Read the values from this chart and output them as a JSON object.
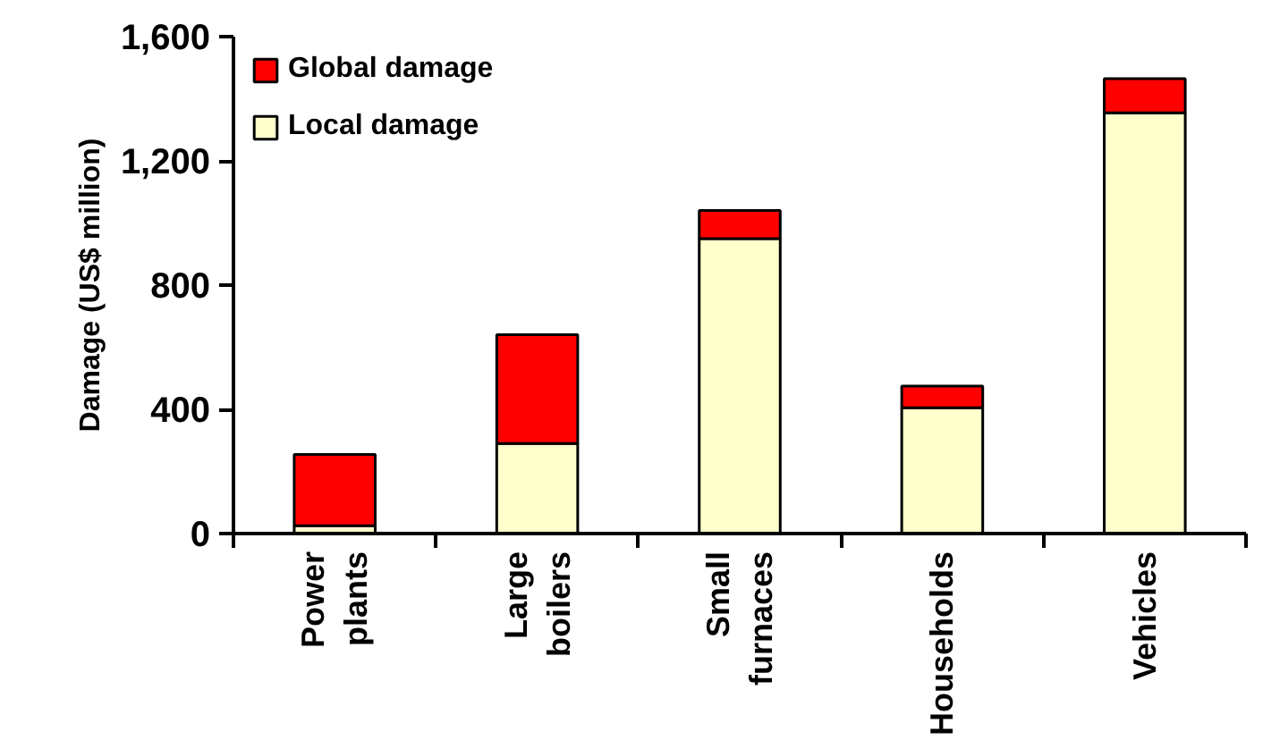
{
  "chart_data": {
    "type": "bar",
    "stacked": true,
    "ylabel": "Damage (US$ million)",
    "categories": [
      "Power plants",
      "Large boilers",
      "Small furnaces",
      "Households",
      "Vehicles"
    ],
    "series": [
      {
        "name": "Local damage",
        "color": "#ffffcc",
        "values": [
          25,
          290,
          950,
          405,
          1355
        ]
      },
      {
        "name": "Global damage",
        "color": "#ff0000",
        "values": [
          230,
          350,
          90,
          70,
          110
        ]
      }
    ],
    "ylim": [
      0,
      1600
    ],
    "yticks": [
      {
        "value": 0,
        "label": "0"
      },
      {
        "value": 400,
        "label": "400"
      },
      {
        "value": 800,
        "label": "800"
      },
      {
        "value": 1200,
        "label": "1,200"
      },
      {
        "value": 1600,
        "label": "1,600"
      }
    ],
    "grid": false,
    "legend": "top left"
  }
}
